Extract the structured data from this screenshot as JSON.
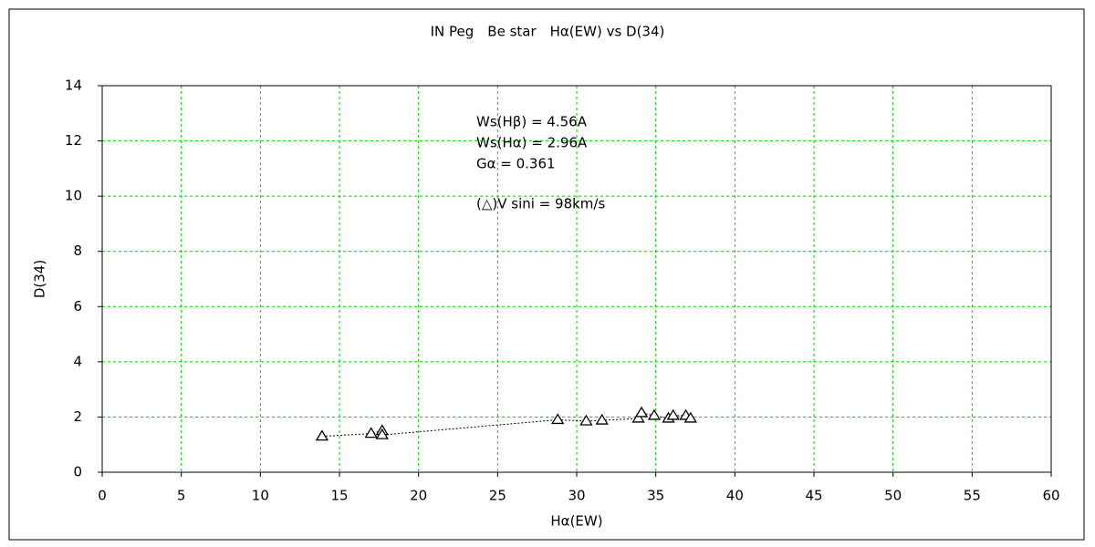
{
  "chart_data": {
    "type": "scatter",
    "title": "IN Peg　Be star　Hα(EW) vs D(34)",
    "x_label": "Hα(EW)",
    "y_label": "D(34)",
    "annotations": [
      "Ws(Hβ) = 4.56A",
      "Ws(Hα) = 2.96A",
      "Gα = 0.361",
      "(△)V sini = 98km/s"
    ],
    "series": [
      {
        "color": "#000000",
        "x": [
          13.9,
          17.0,
          17.7,
          17.7,
          28.8,
          30.6,
          31.6,
          33.9,
          34.1,
          34.9,
          35.8,
          36.1,
          36.9,
          37.2
        ],
        "values": [
          1.3,
          1.4,
          1.5,
          1.35,
          1.9,
          1.85,
          1.88,
          1.95,
          2.15,
          2.05,
          1.95,
          2.05,
          2.05,
          1.95
        ]
      }
    ],
    "xlim": [
      0,
      60
    ],
    "xticks": [
      0,
      5,
      10,
      15,
      20,
      25,
      30,
      35,
      40,
      45,
      50,
      55,
      60
    ],
    "ylim": [
      0,
      14
    ],
    "yticks": [
      0,
      2,
      4,
      6,
      8,
      10,
      12,
      14
    ],
    "grid": true
  }
}
